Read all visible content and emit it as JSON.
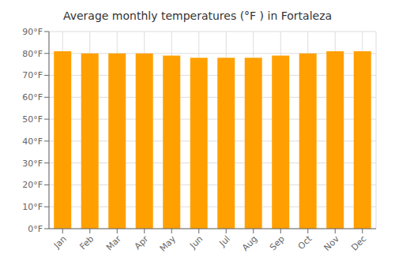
{
  "chart_data": {
    "type": "bar",
    "title": "Average monthly temperatures (°F ) in Fortaleza",
    "categories": [
      "Jan",
      "Feb",
      "Mar",
      "Apr",
      "May",
      "Jun",
      "Jul",
      "Aug",
      "Sep",
      "Oct",
      "Nov",
      "Dec"
    ],
    "values": [
      81,
      80,
      80,
      80,
      79,
      78,
      78,
      78,
      79,
      80,
      81,
      81
    ],
    "color": "#FFA000",
    "ylim": [
      0,
      90
    ],
    "yticks": [
      {
        "value": 0,
        "label": "0°F"
      },
      {
        "value": 10,
        "label": "10°F"
      },
      {
        "value": 20,
        "label": "20°F"
      },
      {
        "value": 30,
        "label": "30°F"
      },
      {
        "value": 40,
        "label": "40°F"
      },
      {
        "value": 50,
        "label": "50°F"
      },
      {
        "value": 60,
        "label": "60°F"
      },
      {
        "value": 70,
        "label": "70°F"
      },
      {
        "value": 80,
        "label": "80°F"
      },
      {
        "value": 90,
        "label": "90°F"
      }
    ],
    "grid": true
  }
}
